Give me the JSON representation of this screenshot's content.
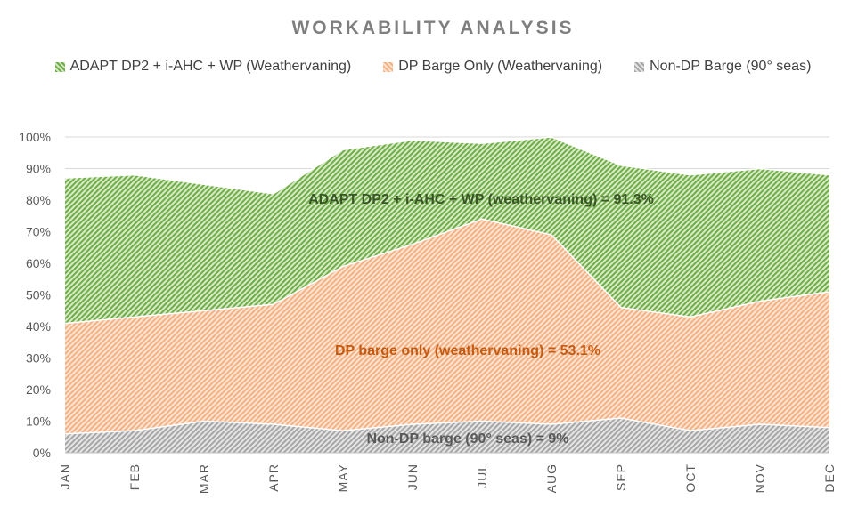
{
  "chart_data": {
    "type": "area",
    "title": "WORKABILITY ANALYSIS",
    "categories": [
      "JAN",
      "FEB",
      "MAR",
      "APR",
      "MAY",
      "JUN",
      "JUL",
      "AUG",
      "SEP",
      "OCT",
      "NOV",
      "DEC"
    ],
    "ylim": [
      0,
      100
    ],
    "yticks": [
      "0%",
      "10%",
      "20%",
      "30%",
      "40%",
      "50%",
      "60%",
      "70%",
      "80%",
      "90%",
      "100%"
    ],
    "grid": true,
    "legend_position": "top",
    "series": [
      {
        "name": "ADAPT DP2 + i-AHC + WP (Weathervaning)",
        "color": "#70ad47",
        "values": [
          87,
          88,
          85,
          82,
          96,
          99,
          98,
          100,
          91,
          88,
          90,
          88
        ]
      },
      {
        "name": "DP Barge Only (Weathervaning)",
        "color": "#f4b183",
        "values": [
          41,
          43,
          45,
          47,
          59,
          66,
          74,
          69,
          46,
          43,
          48,
          51
        ]
      },
      {
        "name": "Non-DP Barge (90° seas)",
        "color": "#a6a6a6",
        "values": [
          6,
          7,
          10,
          9,
          7,
          9,
          10,
          9,
          11,
          7,
          9,
          8
        ]
      }
    ],
    "annotations": [
      {
        "text": "ADAPT DP2 + i-AHC + WP (weathervaning) = 91.3%",
        "color": "#375623"
      },
      {
        "text": "DP barge only (weathervaning) = 53.1%",
        "color": "#c55a11"
      },
      {
        "text": "Non-DP barge (90° seas) = 9%",
        "color": "#595959"
      }
    ]
  }
}
